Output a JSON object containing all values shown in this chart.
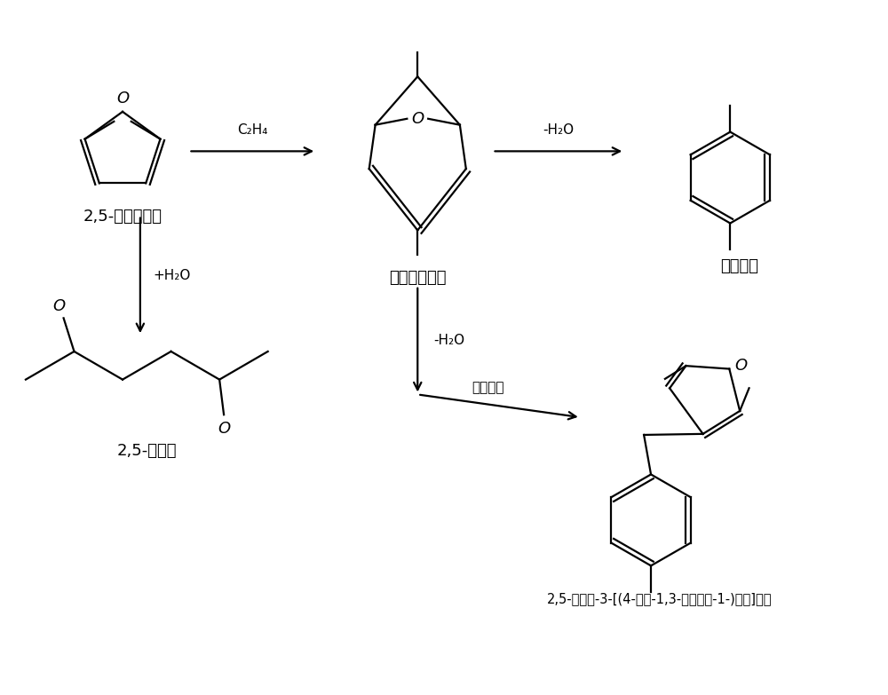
{
  "bg_color": "#ffffff",
  "text_color": "#000000",
  "labels": {
    "dmf": "2,5-二甲基呋喃",
    "intermediate": "环加成中间体",
    "px": "对二甲苯",
    "hexanedione": "2,5-己二酮",
    "byproduct": "2,5-二甲基-3-[(4-甲基-1,3-环己二烯-1-)甲基]呋喃",
    "c2h4": "C₂H₄",
    "minus_h2o_top": "-H₂O",
    "plus_h2o": "+H₂O",
    "minus_h2o_mid": "-H₂O",
    "second_add": "二次加成"
  }
}
